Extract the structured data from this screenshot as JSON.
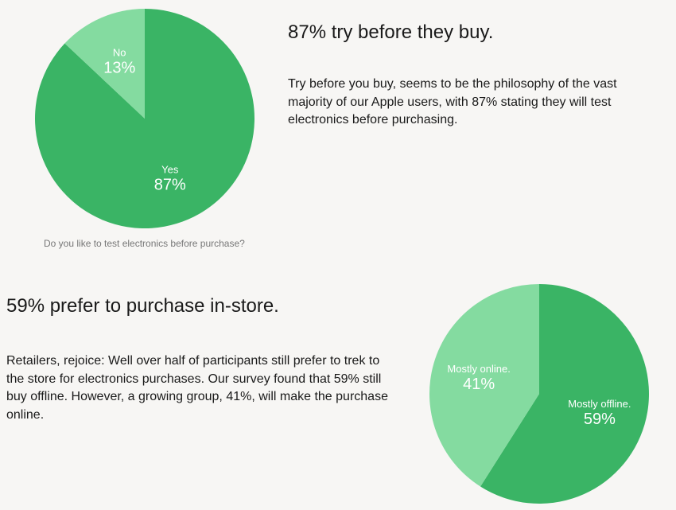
{
  "colors": {
    "dark_green": "#3ab465",
    "light_green": "#84dba0"
  },
  "sections": [
    {
      "headline": "87% try before they buy.",
      "body": "Try before you buy, seems to be the philosophy of the vast majority of our Apple users, with 87% stating they will test electronics before purchasing.",
      "caption": "Do you like to test electronics before purchase?"
    },
    {
      "headline": "59% prefer to purchase in-store.",
      "body": "Retailers, rejoice: Well over half of participants still prefer to trek to the store for electronics purchases. Our survey found that 59% still buy offline. However, a growing group, 41%, will make the purchase online."
    }
  ],
  "chart_data": [
    {
      "type": "pie",
      "title": "Do you like to test electronics before purchase?",
      "slices": [
        {
          "label": "Yes",
          "value": 87,
          "display": "87%"
        },
        {
          "label": "No",
          "value": 13,
          "display": "13%"
        }
      ]
    },
    {
      "type": "pie",
      "title": "",
      "slices": [
        {
          "label": "Mostly offline.",
          "value": 59,
          "display": "59%"
        },
        {
          "label": "Mostly online.",
          "value": 41,
          "display": "41%"
        }
      ]
    }
  ]
}
